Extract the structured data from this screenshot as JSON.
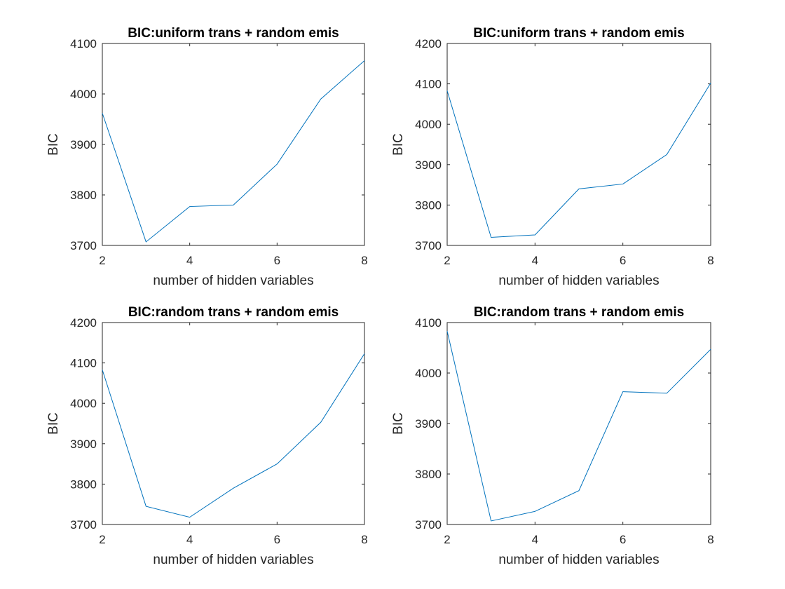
{
  "colors": {
    "background": "#ffffff",
    "axis": "#262626",
    "series_line": "#0072bd"
  },
  "chart_data": [
    {
      "type": "line",
      "title": "BIC:uniform trans + random emis",
      "xlabel": "number of hidden variables",
      "ylabel": "BIC",
      "xlim": [
        2,
        8
      ],
      "ylim": [
        3700,
        4100
      ],
      "xticks": [
        2,
        4,
        6,
        8
      ],
      "yticks": [
        3700,
        3800,
        3900,
        4000,
        4100
      ],
      "grid": false,
      "box": true,
      "x": [
        2,
        3,
        4,
        5,
        6,
        7,
        8
      ],
      "series": [
        {
          "values": [
            3962,
            3707,
            3777,
            3780,
            3861,
            3990,
            4066
          ]
        }
      ]
    },
    {
      "type": "line",
      "title": "BIC:uniform trans + random emis",
      "xlabel": "number of hidden variables",
      "ylabel": "BIC",
      "xlim": [
        2,
        8
      ],
      "ylim": [
        3700,
        4200
      ],
      "xticks": [
        2,
        4,
        6,
        8
      ],
      "yticks": [
        3700,
        3800,
        3900,
        4000,
        4100,
        4200
      ],
      "grid": false,
      "box": true,
      "x": [
        2,
        3,
        4,
        5,
        6,
        7,
        8
      ],
      "series": [
        {
          "values": [
            4083,
            3720,
            3726,
            3840,
            3852,
            3925,
            4102
          ]
        }
      ]
    },
    {
      "type": "line",
      "title": "BIC:random trans + random emis",
      "xlabel": "number of hidden variables",
      "ylabel": "BIC",
      "xlim": [
        2,
        8
      ],
      "ylim": [
        3700,
        4200
      ],
      "xticks": [
        2,
        4,
        6,
        8
      ],
      "yticks": [
        3700,
        3800,
        3900,
        4000,
        4100,
        4200
      ],
      "grid": false,
      "box": true,
      "x": [
        2,
        3,
        4,
        5,
        6,
        7,
        8
      ],
      "series": [
        {
          "values": [
            4083,
            3745,
            3718,
            3790,
            3850,
            3953,
            4123
          ]
        }
      ]
    },
    {
      "type": "line",
      "title": "BIC:random trans + random emis",
      "xlabel": "number of hidden variables",
      "ylabel": "BIC",
      "xlim": [
        2,
        8
      ],
      "ylim": [
        3700,
        4100
      ],
      "xticks": [
        2,
        4,
        6,
        8
      ],
      "yticks": [
        3700,
        3800,
        3900,
        4000,
        4100
      ],
      "grid": false,
      "box": true,
      "x": [
        2,
        3,
        4,
        5,
        6,
        7,
        8
      ],
      "series": [
        {
          "values": [
            4083,
            3707,
            3726,
            3767,
            3963,
            3960,
            4047
          ]
        }
      ]
    }
  ]
}
